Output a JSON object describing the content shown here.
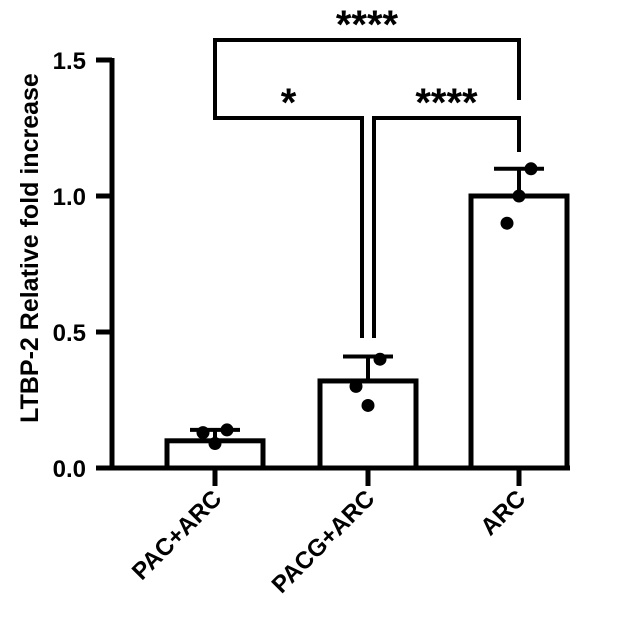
{
  "chart_data": {
    "type": "bar",
    "title": "",
    "xlabel": "",
    "ylabel": "LTBP-2 Relative fold increase",
    "ylim": [
      0,
      1.5
    ],
    "yticks": [
      0.0,
      0.5,
      1.0,
      1.5
    ],
    "ytick_labels": [
      "0.0",
      "0.5",
      "1.0",
      "1.5"
    ],
    "categories": [
      "PAC+ARC",
      "PACG+ARC",
      "ARC"
    ],
    "values": [
      0.1,
      0.32,
      1.0
    ],
    "error_upper": [
      0.14,
      0.41,
      1.1
    ],
    "points": [
      [
        0.13,
        0.09,
        0.14
      ],
      [
        0.3,
        0.23,
        0.4
      ],
      [
        0.9,
        1.0,
        1.1
      ]
    ],
    "comparisons": [
      {
        "from": 0,
        "to": 2,
        "label": "****"
      },
      {
        "from": 0,
        "to": 1,
        "label": "*"
      },
      {
        "from": 1,
        "to": 2,
        "label": "****"
      }
    ]
  }
}
